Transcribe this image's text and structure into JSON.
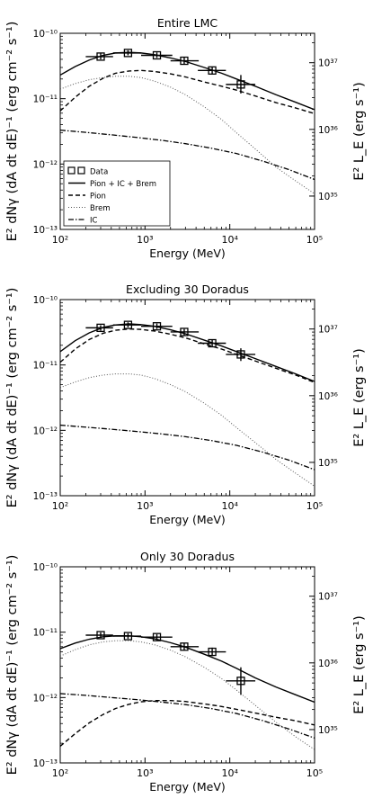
{
  "figure": {
    "ylabel": "E² dNγ (dA dt dE)⁻¹ (erg cm⁻² s⁻¹)",
    "ylabel_right": "E² L_E (erg s⁻¹)"
  },
  "chart_data": [
    {
      "type": "line",
      "title": "Entire LMC",
      "xlabel": "Energy (MeV)",
      "xscale": "log",
      "yscale": "log",
      "xlim": [
        100,
        100000
      ],
      "ylim": [
        1e-13,
        1e-10
      ],
      "x_ticks": [
        "10²",
        "10³",
        "10⁴",
        "10⁵"
      ],
      "y_ticks": [
        "10⁻¹³",
        "10⁻¹²",
        "10⁻¹¹",
        "10⁻¹⁰"
      ],
      "right_ticks": [
        "10³⁵",
        "10³⁶",
        "10³⁷"
      ],
      "legend": {
        "placement": "lower-left",
        "entries": [
          {
            "label": "Data",
            "style": "markers"
          },
          {
            "label": "Pion + IC + Brem",
            "style": "solid"
          },
          {
            "label": "Pion",
            "style": "dashed"
          },
          {
            "label": "Brem",
            "style": "dotted"
          },
          {
            "label": "IC",
            "style": "dashdot"
          }
        ]
      },
      "data_points": [
        {
          "x": 300,
          "y": 4.4e-11,
          "xerr": [
            200,
            420
          ],
          "yerr": [
            4e-11,
            4.9e-11
          ]
        },
        {
          "x": 630,
          "y": 5e-11,
          "xerr": [
            420,
            900
          ],
          "yerr": [
            4.6e-11,
            5.5e-11
          ]
        },
        {
          "x": 1380,
          "y": 4.6e-11,
          "xerr": [
            900,
            2100
          ],
          "yerr": [
            4.2e-11,
            5.1e-11
          ]
        },
        {
          "x": 2900,
          "y": 3.8e-11,
          "xerr": [
            2000,
            4300
          ],
          "yerr": [
            3.4e-11,
            4.3e-11
          ]
        },
        {
          "x": 6200,
          "y": 2.7e-11,
          "xerr": [
            4200,
            9000
          ],
          "yerr": [
            2.35e-11,
            3.1e-11
          ]
        },
        {
          "x": 13500,
          "y": 1.65e-11,
          "xerr": [
            9000,
            20000
          ],
          "yerr": [
            1.2e-11,
            2.3e-11
          ]
        }
      ],
      "series": [
        {
          "name": "Pion + IC + Brem",
          "style": "solid",
          "x": [
            100,
            150,
            220,
            320,
            450,
            650,
            900,
            1300,
            2000,
            3000,
            5000,
            8000,
            12000,
            20000,
            35000,
            60000,
            100000
          ],
          "y": [
            2.3e-11,
            3.1e-11,
            3.9e-11,
            4.6e-11,
            5e-11,
            5.1e-11,
            5e-11,
            4.7e-11,
            4.2e-11,
            3.7e-11,
            3e-11,
            2.45e-11,
            2e-11,
            1.55e-11,
            1.15e-11,
            8.8e-12,
            6.8e-12
          ]
        },
        {
          "name": "Pion",
          "style": "dashed",
          "x": [
            100,
            150,
            220,
            320,
            450,
            650,
            900,
            1300,
            2000,
            3000,
            5000,
            8000,
            12000,
            20000,
            35000,
            60000,
            100000
          ],
          "y": [
            6.5e-12,
            1.05e-11,
            1.55e-11,
            2.05e-11,
            2.45e-11,
            2.65e-11,
            2.7e-11,
            2.6e-11,
            2.4e-11,
            2.15e-11,
            1.8e-11,
            1.55e-11,
            1.35e-11,
            1.1e-11,
            8.7e-12,
            7.2e-12,
            5.9e-12
          ]
        },
        {
          "name": "Brem",
          "style": "dotted",
          "x": [
            100,
            150,
            220,
            320,
            450,
            650,
            900,
            1300,
            2000,
            3000,
            5000,
            8000,
            12000,
            20000,
            35000,
            60000,
            100000
          ],
          "y": [
            1.4e-11,
            1.7e-11,
            1.95e-11,
            2.1e-11,
            2.2e-11,
            2.2e-11,
            2.1e-11,
            1.85e-11,
            1.5e-11,
            1.15e-11,
            7.5e-12,
            4.8e-12,
            3e-12,
            1.7e-12,
            9e-13,
            5.5e-13,
            3.5e-13
          ]
        },
        {
          "name": "IC",
          "style": "dashdot",
          "x": [
            100,
            200,
            400,
            800,
            1600,
            3000,
            6000,
            12000,
            25000,
            50000,
            100000
          ],
          "y": [
            3.3e-12,
            3.05e-12,
            2.8e-12,
            2.55e-12,
            2.3e-12,
            2.05e-12,
            1.75e-12,
            1.45e-12,
            1.1e-12,
            8.2e-13,
            5.8e-13
          ]
        }
      ]
    },
    {
      "type": "line",
      "title": "Excluding 30 Doradus",
      "xlabel": "Energy (MeV)",
      "xscale": "log",
      "yscale": "log",
      "xlim": [
        100,
        100000
      ],
      "ylim": [
        1e-13,
        1e-10
      ],
      "x_ticks": [
        "10²",
        "10³",
        "10⁴",
        "10⁵"
      ],
      "y_ticks": [
        "10⁻¹³",
        "10⁻¹²",
        "10⁻¹¹",
        "10⁻¹⁰"
      ],
      "right_ticks": [
        "10³⁵",
        "10³⁶",
        "10³⁷"
      ],
      "data_points": [
        {
          "x": 300,
          "y": 3.7e-11,
          "xerr": [
            200,
            420
          ],
          "yerr": [
            3.35e-11,
            4.05e-11
          ]
        },
        {
          "x": 630,
          "y": 4.1e-11,
          "xerr": [
            420,
            900
          ],
          "yerr": [
            3.75e-11,
            4.5e-11
          ]
        },
        {
          "x": 1380,
          "y": 3.9e-11,
          "xerr": [
            900,
            2100
          ],
          "yerr": [
            3.55e-11,
            4.3e-11
          ]
        },
        {
          "x": 2900,
          "y": 3.2e-11,
          "xerr": [
            2000,
            4300
          ],
          "yerr": [
            2.85e-11,
            3.55e-11
          ]
        },
        {
          "x": 6200,
          "y": 2.15e-11,
          "xerr": [
            4200,
            9000
          ],
          "yerr": [
            1.9e-11,
            2.45e-11
          ]
        },
        {
          "x": 13500,
          "y": 1.45e-11,
          "xerr": [
            9000,
            20000
          ],
          "yerr": [
            1.15e-11,
            1.8e-11
          ]
        }
      ],
      "series": [
        {
          "name": "Pion + IC + Brem",
          "style": "solid",
          "x": [
            100,
            150,
            220,
            320,
            450,
            650,
            900,
            1300,
            2000,
            3000,
            5000,
            8000,
            12000,
            20000,
            35000,
            60000,
            100000
          ],
          "y": [
            1.6e-11,
            2.35e-11,
            3.1e-11,
            3.75e-11,
            4.1e-11,
            4.25e-11,
            4.15e-11,
            3.9e-11,
            3.45e-11,
            3e-11,
            2.4e-11,
            1.95e-11,
            1.6e-11,
            1.25e-11,
            9.5e-12,
            7.3e-12,
            5.6e-12
          ]
        },
        {
          "name": "Pion",
          "style": "dashed",
          "x": [
            100,
            150,
            220,
            320,
            450,
            650,
            900,
            1300,
            2000,
            3000,
            5000,
            8000,
            12000,
            20000,
            35000,
            60000,
            100000
          ],
          "y": [
            1.1e-11,
            1.75e-11,
            2.45e-11,
            3.05e-11,
            3.4e-11,
            3.55e-11,
            3.5e-11,
            3.3e-11,
            2.95e-11,
            2.6e-11,
            2.1e-11,
            1.75e-11,
            1.45e-11,
            1.15e-11,
            8.9e-12,
            7e-12,
            5.4e-12
          ]
        },
        {
          "name": "Brem",
          "style": "dotted",
          "x": [
            100,
            150,
            220,
            320,
            450,
            650,
            900,
            1300,
            2000,
            3000,
            5000,
            8000,
            12000,
            20000,
            35000,
            60000,
            100000
          ],
          "y": [
            4.5e-12,
            5.5e-12,
            6.4e-12,
            7e-12,
            7.3e-12,
            7.3e-12,
            7e-12,
            6.2e-12,
            5e-12,
            3.9e-12,
            2.6e-12,
            1.7e-12,
            1.1e-12,
            6.5e-13,
            3.6e-13,
            2.2e-13,
            1.4e-13
          ]
        },
        {
          "name": "IC",
          "style": "dashdot",
          "x": [
            100,
            200,
            400,
            800,
            1600,
            3000,
            6000,
            12000,
            25000,
            50000,
            100000
          ],
          "y": [
            1.2e-12,
            1.12e-12,
            1.04e-12,
            9.6e-13,
            8.8e-13,
            8e-13,
            7e-13,
            5.9e-13,
            4.6e-13,
            3.5e-13,
            2.5e-13
          ]
        }
      ]
    },
    {
      "type": "line",
      "title": "Only 30 Doradus",
      "xlabel": "Energy (MeV)",
      "xscale": "log",
      "yscale": "log",
      "xlim": [
        100,
        100000
      ],
      "ylim": [
        1e-13,
        1e-10
      ],
      "x_ticks": [
        "10²",
        "10³",
        "10⁴",
        "10⁵"
      ],
      "y_ticks": [
        "10⁻¹³",
        "10⁻¹²",
        "10⁻¹¹",
        "10⁻¹⁰"
      ],
      "right_ticks": [
        "10³⁵",
        "10³⁶",
        "10³⁷"
      ],
      "data_points": [
        {
          "x": 300,
          "y": 9e-12,
          "xerr": [
            200,
            420
          ],
          "yerr": [
            8.2e-12,
            9.9e-12
          ]
        },
        {
          "x": 630,
          "y": 8.7e-12,
          "xerr": [
            420,
            900
          ],
          "yerr": [
            7.9e-12,
            9.6e-12
          ]
        },
        {
          "x": 1380,
          "y": 8.4e-12,
          "xerr": [
            900,
            2100
          ],
          "yerr": [
            7.6e-12,
            9.3e-12
          ]
        },
        {
          "x": 2900,
          "y": 6e-12,
          "xerr": [
            2000,
            4300
          ],
          "yerr": [
            5.3e-12,
            6.8e-12
          ]
        },
        {
          "x": 6200,
          "y": 5e-12,
          "xerr": [
            4200,
            9000
          ],
          "yerr": [
            4.3e-12,
            5.8e-12
          ]
        },
        {
          "x": 13500,
          "y": 1.8e-12,
          "xerr": [
            9000,
            20000
          ],
          "yerr": [
            1.1e-12,
            2.9e-12
          ]
        }
      ],
      "series": [
        {
          "name": "Pion + IC + Brem",
          "style": "solid",
          "x": [
            100,
            150,
            220,
            320,
            450,
            650,
            900,
            1300,
            2000,
            3000,
            5000,
            8000,
            12000,
            20000,
            35000,
            60000,
            100000
          ],
          "y": [
            5.6e-12,
            6.8e-12,
            7.8e-12,
            8.5e-12,
            8.8e-12,
            8.8e-12,
            8.5e-12,
            7.9e-12,
            6.9e-12,
            5.9e-12,
            4.6e-12,
            3.6e-12,
            2.8e-12,
            2e-12,
            1.45e-12,
            1.1e-12,
            8.5e-13
          ]
        },
        {
          "name": "Pion",
          "style": "dashed",
          "x": [
            100,
            150,
            220,
            320,
            450,
            650,
            900,
            1300,
            2000,
            3000,
            5000,
            8000,
            12000,
            20000,
            35000,
            60000,
            100000
          ],
          "y": [
            1.8e-13,
            2.8e-13,
            4.1e-13,
            5.5e-13,
            6.8e-13,
            7.9e-13,
            8.6e-13,
            9e-13,
            9e-13,
            8.7e-13,
            8e-13,
            7.3e-13,
            6.6e-13,
            5.8e-13,
            5e-13,
            4.4e-13,
            3.8e-13
          ]
        },
        {
          "name": "Brem",
          "style": "dotted",
          "x": [
            100,
            150,
            220,
            320,
            450,
            650,
            900,
            1300,
            2000,
            3000,
            5000,
            8000,
            12000,
            20000,
            35000,
            60000,
            100000
          ],
          "y": [
            4.3e-12,
            5.4e-12,
            6.4e-12,
            7.1e-12,
            7.4e-12,
            7.4e-12,
            7.1e-12,
            6.4e-12,
            5.3e-12,
            4.2e-12,
            2.9e-12,
            1.95e-12,
            1.3e-12,
            7.6e-13,
            4.2e-13,
            2.5e-13,
            1.6e-13
          ]
        },
        {
          "name": "IC",
          "style": "dashdot",
          "x": [
            100,
            200,
            400,
            800,
            1600,
            3000,
            6000,
            12000,
            25000,
            50000,
            100000
          ],
          "y": [
            1.15e-12,
            1.08e-12,
            1e-12,
            9.3e-13,
            8.5e-13,
            7.8e-13,
            6.8e-13,
            5.7e-13,
            4.4e-13,
            3.3e-13,
            2.4e-13
          ]
        }
      ]
    }
  ]
}
